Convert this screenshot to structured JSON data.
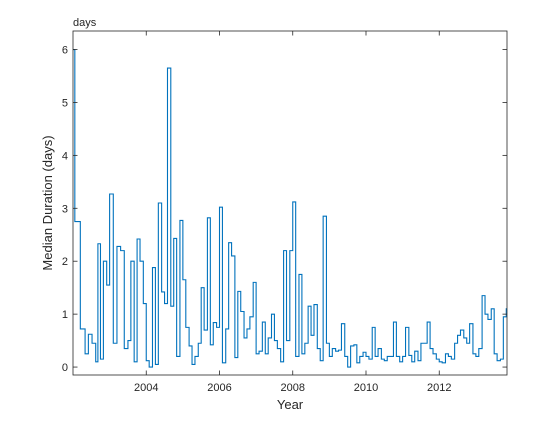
{
  "chart_data": {
    "type": "line",
    "style": "stairs",
    "title": "",
    "xlabel": "Year",
    "ylabel": "Median Duration (days)",
    "y_unit_label": "days",
    "xlim": [
      2002.0,
      2013.85
    ],
    "ylim": [
      -0.15,
      6.35
    ],
    "xticks": [
      2004,
      2006,
      2008,
      2010,
      2012
    ],
    "xtick_labels": [
      "2004",
      "2006",
      "2008",
      "2010",
      "2012"
    ],
    "yticks": [
      0,
      1,
      2,
      3,
      4,
      5,
      6
    ],
    "ytick_labels": [
      "0",
      "1",
      "2",
      "3",
      "4",
      "5",
      "6"
    ],
    "grid": false,
    "legend": "none",
    "series": [
      {
        "color": "#0072BD",
        "x": [
          2002.0,
          2002.05,
          2002.2,
          2002.33,
          2002.42,
          2002.52,
          2002.62,
          2002.68,
          2002.75,
          2002.83,
          2002.92,
          2003.0,
          2003.1,
          2003.2,
          2003.3,
          2003.4,
          2003.5,
          2003.58,
          2003.67,
          2003.75,
          2003.83,
          2003.92,
          2004.0,
          2004.08,
          2004.17,
          2004.25,
          2004.33,
          2004.42,
          2004.5,
          2004.58,
          2004.67,
          2004.75,
          2004.83,
          2004.92,
          2005.0,
          2005.08,
          2005.17,
          2005.25,
          2005.33,
          2005.42,
          2005.5,
          2005.58,
          2005.67,
          2005.75,
          2005.83,
          2005.92,
          2006.0,
          2006.08,
          2006.17,
          2006.25,
          2006.33,
          2006.42,
          2006.5,
          2006.58,
          2006.67,
          2006.75,
          2006.83,
          2006.92,
          2007.0,
          2007.08,
          2007.17,
          2007.25,
          2007.33,
          2007.42,
          2007.5,
          2007.58,
          2007.67,
          2007.75,
          2007.83,
          2007.92,
          2008.0,
          2008.08,
          2008.17,
          2008.25,
          2008.33,
          2008.42,
          2008.5,
          2008.58,
          2008.67,
          2008.75,
          2008.83,
          2008.92,
          2009.0,
          2009.08,
          2009.17,
          2009.25,
          2009.33,
          2009.42,
          2009.5,
          2009.58,
          2009.67,
          2009.75,
          2009.83,
          2009.92,
          2010.0,
          2010.08,
          2010.17,
          2010.25,
          2010.33,
          2010.42,
          2010.5,
          2010.58,
          2010.67,
          2010.75,
          2010.83,
          2010.92,
          2011.0,
          2011.08,
          2011.17,
          2011.25,
          2011.33,
          2011.42,
          2011.5,
          2011.58,
          2011.67,
          2011.75,
          2011.83,
          2011.92,
          2012.0,
          2012.08,
          2012.17,
          2012.25,
          2012.33,
          2012.42,
          2012.5,
          2012.58,
          2012.67,
          2012.75,
          2012.83,
          2012.92,
          2013.0,
          2013.08,
          2013.17,
          2013.25,
          2013.33,
          2013.42,
          2013.5,
          2013.58,
          2013.67,
          2013.75,
          2013.83
        ],
        "y": [
          6.0,
          2.75,
          0.72,
          0.25,
          0.62,
          0.45,
          0.1,
          2.33,
          0.15,
          2.0,
          1.55,
          3.27,
          0.45,
          2.28,
          2.2,
          0.35,
          0.5,
          2.0,
          0.1,
          2.42,
          2.0,
          1.2,
          0.12,
          0.0,
          1.88,
          0.05,
          3.1,
          1.42,
          1.2,
          5.65,
          1.15,
          2.43,
          0.2,
          2.77,
          1.65,
          0.75,
          0.4,
          0.05,
          0.2,
          0.45,
          1.5,
          0.7,
          2.82,
          0.42,
          0.84,
          0.75,
          3.02,
          0.08,
          0.72,
          2.35,
          2.1,
          0.18,
          1.43,
          1.05,
          0.55,
          0.72,
          0.95,
          1.6,
          0.25,
          0.3,
          0.85,
          0.25,
          0.55,
          1.0,
          0.5,
          0.35,
          0.1,
          2.2,
          0.5,
          2.2,
          3.12,
          0.2,
          1.75,
          0.25,
          0.45,
          1.15,
          0.6,
          1.18,
          0.35,
          0.12,
          2.85,
          0.45,
          0.2,
          0.35,
          0.3,
          0.32,
          0.82,
          0.2,
          0.0,
          0.4,
          0.42,
          0.08,
          0.2,
          0.28,
          0.2,
          0.15,
          0.75,
          0.2,
          0.35,
          0.15,
          0.12,
          0.2,
          0.2,
          0.85,
          0.2,
          0.1,
          0.2,
          0.75,
          0.22,
          0.1,
          0.3,
          0.12,
          0.45,
          0.45,
          0.85,
          0.35,
          0.25,
          0.15,
          0.1,
          0.08,
          0.25,
          0.2,
          0.15,
          0.45,
          0.6,
          0.7,
          0.55,
          0.45,
          0.82,
          0.25,
          0.2,
          0.35,
          1.35,
          1.0,
          0.9,
          1.1,
          0.25,
          0.12,
          0.15,
          0.95,
          1.1
        ]
      }
    ]
  }
}
